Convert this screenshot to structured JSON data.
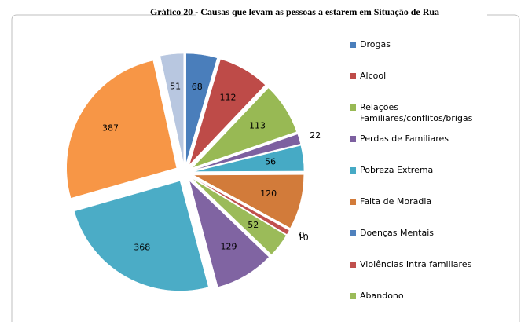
{
  "chart_data": {
    "type": "pie",
    "title": "Gráfico 20 - Causas que levam as pessoas a estarem em Situação de Rua",
    "categories": [
      "Drogas",
      "Alcool",
      "Relações Familiares/conflitos/brigas",
      "Perdas de Familiares",
      "Pobreza Extrema",
      "Falta de Moradia",
      "Doenças Mentais",
      "Violências Intra familiares",
      "Abandono",
      null,
      null,
      null,
      null
    ],
    "values": [
      68,
      112,
      113,
      22,
      56,
      120,
      0,
      10,
      52,
      129,
      368,
      387,
      51
    ],
    "colors": [
      "#4a7ebb",
      "#be4b48",
      "#98b954",
      "#7d60a0",
      "#46aac5",
      "#d27b3a",
      "#4f81bd",
      "#c0504d",
      "#9bbb59",
      "#8064a2",
      "#4bacc6",
      "#f79646",
      "#b8c7e0"
    ],
    "exploded": true
  }
}
